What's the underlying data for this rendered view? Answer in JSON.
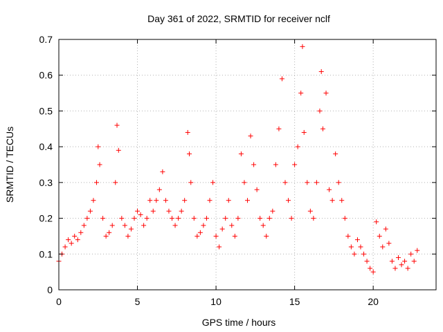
{
  "chart_data": {
    "type": "scatter",
    "title": "Day 361 of 2022, SRMTID for receiver nclf",
    "xlabel": "GPS time / hours",
    "ylabel": "SRMTID / TECUs",
    "xlim": [
      0,
      24
    ],
    "ylim": [
      0,
      0.7
    ],
    "xticks": [
      0,
      5,
      10,
      15,
      20
    ],
    "xtick_labels": [
      "0",
      "5",
      "10",
      "15",
      "20"
    ],
    "yticks": [
      0,
      0.1,
      0.2,
      0.3,
      0.4,
      0.5,
      0.6,
      0.7
    ],
    "ytick_labels": [
      "0",
      "0.1",
      "0.2",
      "0.3",
      "0.4",
      "0.5",
      "0.6",
      "0.7"
    ],
    "grid": true,
    "marker": "+",
    "series": [
      {
        "name": "SRMTID",
        "color": "#ff0000",
        "x": [
          0.0,
          0.2,
          0.4,
          0.6,
          0.8,
          1.0,
          1.2,
          1.4,
          1.6,
          1.8,
          2.0,
          2.2,
          2.4,
          2.5,
          2.6,
          2.8,
          3.0,
          3.2,
          3.4,
          3.6,
          3.7,
          3.8,
          4.0,
          4.2,
          4.4,
          4.6,
          4.8,
          5.0,
          5.2,
          5.4,
          5.6,
          5.8,
          6.0,
          6.2,
          6.4,
          6.6,
          6.8,
          7.0,
          7.2,
          7.4,
          7.6,
          7.8,
          8.0,
          8.2,
          8.3,
          8.4,
          8.6,
          8.8,
          9.0,
          9.2,
          9.4,
          9.6,
          9.8,
          10.0,
          10.2,
          10.4,
          10.6,
          10.8,
          11.0,
          11.2,
          11.4,
          11.6,
          11.8,
          12.0,
          12.2,
          12.4,
          12.6,
          12.8,
          13.0,
          13.2,
          13.4,
          13.6,
          13.8,
          14.0,
          14.2,
          14.4,
          14.6,
          14.8,
          15.0,
          15.2,
          15.4,
          15.5,
          15.6,
          15.8,
          16.0,
          16.2,
          16.4,
          16.6,
          16.7,
          16.8,
          17.0,
          17.2,
          17.4,
          17.6,
          17.8,
          18.0,
          18.2,
          18.4,
          18.6,
          18.8,
          19.0,
          19.2,
          19.4,
          19.6,
          19.8,
          20.0,
          20.2,
          20.4,
          20.6,
          20.8,
          21.0,
          21.2,
          21.4,
          21.6,
          21.8,
          22.0,
          22.2,
          22.4,
          22.6,
          22.8
        ],
        "y": [
          0.08,
          0.1,
          0.12,
          0.14,
          0.13,
          0.15,
          0.14,
          0.16,
          0.18,
          0.2,
          0.22,
          0.25,
          0.3,
          0.4,
          0.35,
          0.2,
          0.15,
          0.16,
          0.18,
          0.3,
          0.46,
          0.39,
          0.2,
          0.18,
          0.15,
          0.17,
          0.2,
          0.22,
          0.21,
          0.18,
          0.2,
          0.25,
          0.22,
          0.25,
          0.28,
          0.33,
          0.25,
          0.22,
          0.2,
          0.18,
          0.2,
          0.22,
          0.25,
          0.44,
          0.38,
          0.3,
          0.2,
          0.15,
          0.16,
          0.18,
          0.2,
          0.25,
          0.3,
          0.15,
          0.12,
          0.17,
          0.2,
          0.25,
          0.18,
          0.15,
          0.2,
          0.38,
          0.3,
          0.25,
          0.43,
          0.35,
          0.28,
          0.2,
          0.18,
          0.15,
          0.2,
          0.22,
          0.35,
          0.45,
          0.59,
          0.3,
          0.25,
          0.2,
          0.35,
          0.4,
          0.55,
          0.68,
          0.44,
          0.3,
          0.22,
          0.2,
          0.3,
          0.5,
          0.61,
          0.45,
          0.55,
          0.28,
          0.25,
          0.38,
          0.3,
          0.25,
          0.2,
          0.15,
          0.12,
          0.1,
          0.14,
          0.12,
          0.1,
          0.08,
          0.06,
          0.05,
          0.19,
          0.15,
          0.12,
          0.17,
          0.13,
          0.08,
          0.06,
          0.09,
          0.07,
          0.08,
          0.06,
          0.1,
          0.08,
          0.11
        ]
      }
    ]
  }
}
